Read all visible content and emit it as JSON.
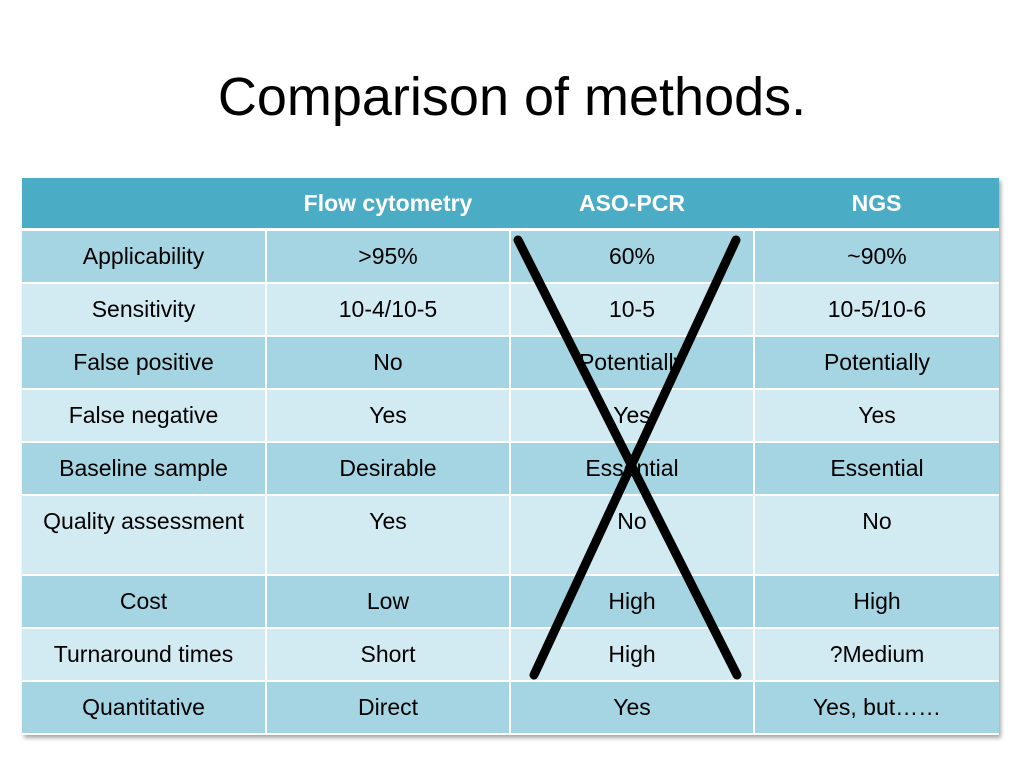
{
  "title": "Comparison of methods.",
  "table": {
    "headers": [
      "",
      "Flow cytometry",
      "ASO-PCR",
      "NGS"
    ],
    "rows": [
      [
        "Applicability",
        ">95%",
        "60%",
        "~90%"
      ],
      [
        "Sensitivity",
        "10-4/10-5",
        "10-5",
        "10-5/10-6"
      ],
      [
        "False positive",
        "No",
        "Potentially",
        "Potentially"
      ],
      [
        "False negative",
        "Yes",
        "Yes",
        "Yes"
      ],
      [
        "Baseline sample",
        "Desirable",
        "Essential",
        "Essential"
      ],
      [
        "Quality assessment",
        "Yes",
        "No",
        "No"
      ],
      [
        "Cost",
        "Low",
        "High",
        "High"
      ],
      [
        "Turnaround times",
        "Short",
        "High",
        "?Medium"
      ],
      [
        "Quantitative",
        "Direct",
        "Yes",
        "Yes, but……"
      ]
    ]
  },
  "colors": {
    "header_bg": "#4bacc6",
    "row_dark": "#a5d5e2",
    "row_light": "#d2eaf1",
    "cross": "#000000"
  },
  "annotation": {
    "crossed_out_column": "ASO-PCR"
  }
}
